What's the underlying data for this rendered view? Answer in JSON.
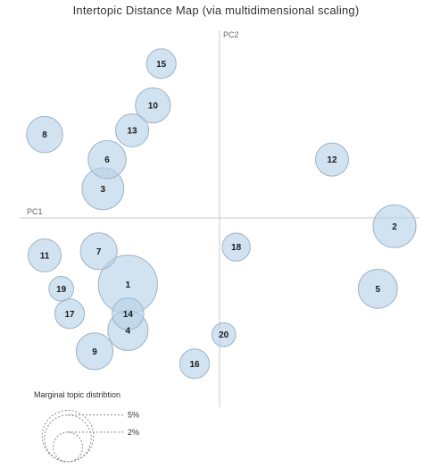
{
  "chart_data": {
    "type": "scatter",
    "title": "Intertopic Distance Map (via multidimensional scaling)",
    "xlabel": "PC1",
    "ylabel": "PC2",
    "xlim": [
      -0.48,
      0.48
    ],
    "ylim": [
      -0.45,
      0.45
    ],
    "grid": false,
    "bubble_color": "#b9d2e8",
    "bubble_stroke": "#9fb3c6",
    "axis_color": "#c8c8c8",
    "topics": [
      {
        "label": "1",
        "x": -0.22,
        "y": -0.16,
        "size": 0.08
      },
      {
        "label": "2",
        "x": 0.42,
        "y": -0.02,
        "size": 0.042
      },
      {
        "label": "3",
        "x": -0.28,
        "y": 0.07,
        "size": 0.04
      },
      {
        "label": "4",
        "x": -0.22,
        "y": -0.27,
        "size": 0.037
      },
      {
        "label": "5",
        "x": 0.38,
        "y": -0.17,
        "size": 0.035
      },
      {
        "label": "6",
        "x": -0.27,
        "y": 0.14,
        "size": 0.033
      },
      {
        "label": "7",
        "x": -0.29,
        "y": -0.08,
        "size": 0.031
      },
      {
        "label": "8",
        "x": -0.42,
        "y": 0.2,
        "size": 0.03
      },
      {
        "label": "9",
        "x": -0.3,
        "y": -0.32,
        "size": 0.031
      },
      {
        "label": "10",
        "x": -0.16,
        "y": 0.27,
        "size": 0.028
      },
      {
        "label": "11",
        "x": -0.42,
        "y": -0.09,
        "size": 0.025
      },
      {
        "label": "12",
        "x": 0.27,
        "y": 0.14,
        "size": 0.025
      },
      {
        "label": "13",
        "x": -0.21,
        "y": 0.21,
        "size": 0.025
      },
      {
        "label": "14",
        "x": -0.22,
        "y": -0.23,
        "size": 0.023
      },
      {
        "label": "15",
        "x": -0.14,
        "y": 0.37,
        "size": 0.02
      },
      {
        "label": "16",
        "x": -0.06,
        "y": -0.35,
        "size": 0.02
      },
      {
        "label": "17",
        "x": -0.36,
        "y": -0.23,
        "size": 0.02
      },
      {
        "label": "18",
        "x": 0.04,
        "y": -0.07,
        "size": 0.018
      },
      {
        "label": "19",
        "x": -0.38,
        "y": -0.17,
        "size": 0.014
      },
      {
        "label": "20",
        "x": 0.01,
        "y": -0.28,
        "size": 0.013
      }
    ],
    "marginal_legend": {
      "title": "Marginal topic distribtion",
      "entries": [
        {
          "label": "2%",
          "value": 0.02
        },
        {
          "label": "5%",
          "value": 0.05
        }
      ]
    }
  }
}
